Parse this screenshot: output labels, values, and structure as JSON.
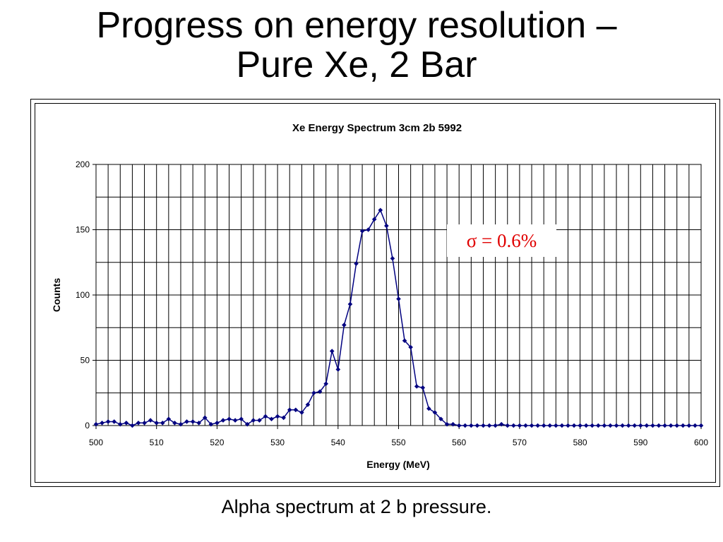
{
  "slide": {
    "title_line1": "Progress on energy resolution –",
    "title_line2": "Pure Xe,  2 Bar",
    "caption": "Alpha spectrum at 2 b pressure."
  },
  "chart_data": {
    "type": "line",
    "title": "Xe   Energy Spectrum 3cm 2b 5992",
    "xlabel": "Energy (MeV)",
    "ylabel": "Counts",
    "xlim": [
      500,
      600
    ],
    "ylim": [
      0,
      200
    ],
    "x_ticks": [
      500,
      510,
      520,
      530,
      540,
      550,
      560,
      570,
      580,
      590,
      600
    ],
    "y_ticks": [
      0,
      50,
      100,
      150,
      200
    ],
    "grid": true,
    "marker": "diamond",
    "color": "#000080",
    "annotation": {
      "text": "σ = 0.6%",
      "color": "#e00000"
    },
    "series": [
      {
        "x": [
          500,
          501,
          502,
          503,
          504,
          505,
          506,
          507,
          508,
          509,
          510,
          511,
          512,
          513,
          514,
          515,
          516,
          517,
          518,
          519,
          520,
          521,
          522,
          523,
          524,
          525,
          526,
          527,
          528,
          529,
          530,
          531,
          532,
          533,
          534,
          535,
          536,
          537,
          538,
          539,
          540,
          541,
          542,
          543,
          544,
          545,
          546,
          547,
          548,
          549,
          550,
          551,
          552,
          553,
          554,
          555,
          556,
          557,
          558,
          559,
          560,
          561,
          562,
          563,
          564,
          565,
          566,
          567,
          568,
          569,
          570,
          571,
          572,
          573,
          574,
          575,
          576,
          577,
          578,
          579,
          580,
          581,
          582,
          583,
          584,
          585,
          586,
          587,
          588,
          589,
          590,
          591,
          592,
          593,
          594,
          595,
          596,
          597,
          598,
          599,
          600
        ],
        "y": [
          1,
          2,
          3,
          3,
          1,
          2,
          0,
          2,
          2,
          4,
          2,
          2,
          5,
          2,
          1,
          3,
          3,
          2,
          6,
          1,
          2,
          4,
          5,
          4,
          5,
          1,
          4,
          4,
          7,
          5,
          7,
          6,
          12,
          12,
          10,
          16,
          25,
          26,
          32,
          57,
          43,
          77,
          93,
          124,
          149,
          150,
          158,
          165,
          153,
          128,
          97,
          65,
          60,
          30,
          29,
          13,
          10,
          5,
          1,
          1,
          0,
          0,
          0,
          0,
          0,
          0,
          0,
          1,
          0,
          0,
          0,
          0,
          0,
          0,
          0,
          0,
          0,
          0,
          0,
          0,
          0,
          0,
          0,
          0,
          0,
          0,
          0,
          0,
          0,
          0,
          0,
          0,
          0,
          0,
          0,
          0,
          0,
          0,
          0,
          0,
          0
        ]
      }
    ]
  }
}
